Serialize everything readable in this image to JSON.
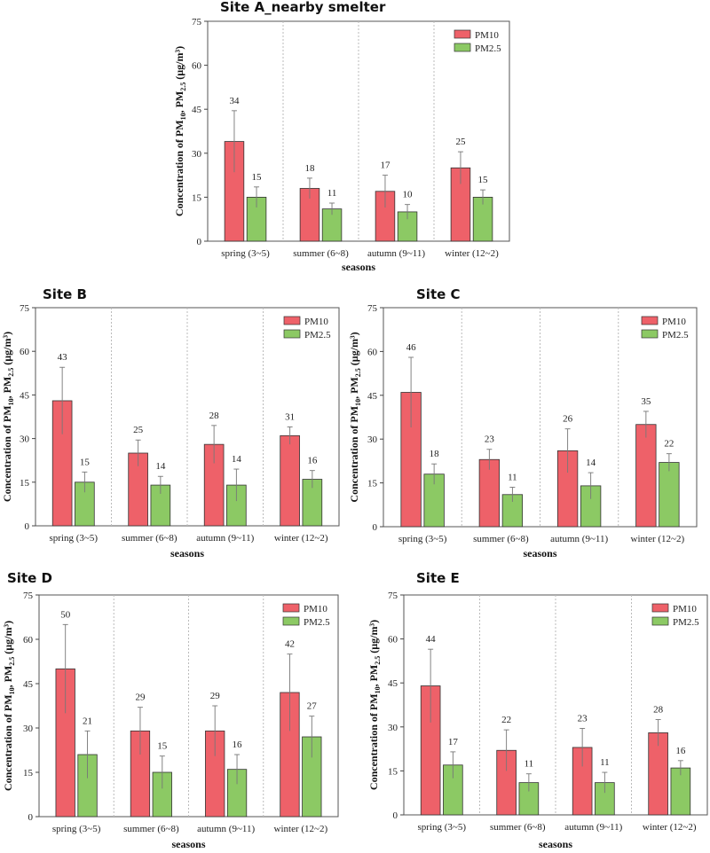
{
  "chart_data": [
    {
      "type": "bar",
      "title": "Site A_nearby smelter",
      "categories": [
        "spring (3~5)",
        "summer (6~8)",
        "autumn (9~11)",
        "winter (12~2)"
      ],
      "series": [
        {
          "name": "PM10",
          "color": "#ee6169",
          "values": [
            34,
            18,
            17,
            25
          ],
          "labels": [
            "34",
            "18",
            "17",
            "25"
          ],
          "err": [
            10.5,
            3.5,
            5.5,
            5.5
          ]
        },
        {
          "name": "PM2.5",
          "color": "#8cc964",
          "values": [
            15,
            11,
            10,
            15
          ],
          "labels": [
            "15",
            "11",
            "10",
            "15"
          ],
          "err": [
            3.5,
            2.0,
            2.5,
            2.5
          ]
        }
      ],
      "xlabel": "seasons",
      "ylabel": {
        "prefix": "Concentration of PM",
        "s1": "10",
        "mid": ", PM",
        "s2": "2.5",
        "suffix": " (µg/m³)"
      },
      "ylim": [
        0,
        75
      ],
      "yticks": [
        "0",
        "15",
        "30",
        "45",
        "60",
        "75"
      ],
      "legend": "top-right"
    },
    {
      "type": "bar",
      "title": "Site B",
      "categories": [
        "spring (3~5)",
        "summer (6~8)",
        "autumn (9~11)",
        "winter (12~2)"
      ],
      "series": [
        {
          "name": "PM10",
          "color": "#ee6169",
          "values": [
            43,
            25,
            28,
            31
          ],
          "labels": [
            "43",
            "25",
            "28",
            "31"
          ],
          "err": [
            11.5,
            4.5,
            6.5,
            3.0
          ]
        },
        {
          "name": "PM2.5",
          "color": "#8cc964",
          "values": [
            15,
            14,
            14,
            16
          ],
          "labels": [
            "15",
            "14",
            "14",
            "16"
          ],
          "err": [
            3.5,
            3.0,
            5.5,
            3.0
          ]
        }
      ],
      "xlabel": "seasons",
      "ylabel": {
        "prefix": "Concentration of PM",
        "s1": "10",
        "mid": ", PM",
        "s2": "2.5",
        "suffix": " (µg/m³)"
      },
      "ylim": [
        0,
        75
      ],
      "yticks": [
        "0",
        "15",
        "30",
        "45",
        "60",
        "75"
      ],
      "legend": "top-right"
    },
    {
      "type": "bar",
      "title": "Site C",
      "categories": [
        "spring (3~5)",
        "summer (6~8)",
        "autumn (9~11)",
        "winter (12~2)"
      ],
      "series": [
        {
          "name": "PM10",
          "color": "#ee6169",
          "values": [
            46,
            23,
            26,
            35
          ],
          "labels": [
            "46",
            "23",
            "26",
            "35"
          ],
          "err": [
            12.0,
            3.5,
            7.5,
            4.5
          ]
        },
        {
          "name": "PM2.5",
          "color": "#8cc964",
          "values": [
            18,
            11,
            14,
            22
          ],
          "labels": [
            "18",
            "11",
            "14",
            "22"
          ],
          "err": [
            3.5,
            2.5,
            4.5,
            3.0
          ]
        }
      ],
      "xlabel": "seasons",
      "ylabel": {
        "prefix": "Concentration of PM",
        "s1": "10",
        "mid": ", PM",
        "s2": "2.5",
        "suffix": " (µg/m³)"
      },
      "ylim": [
        0,
        75
      ],
      "yticks": [
        "0",
        "15",
        "30",
        "45",
        "60",
        "75"
      ],
      "legend": "top-right"
    },
    {
      "type": "bar",
      "title": "Site D",
      "categories": [
        "spring (3~5)",
        "summer (6~8)",
        "autumn (9~11)",
        "winter (12~2)"
      ],
      "series": [
        {
          "name": "PM10",
          "color": "#ee6169",
          "values": [
            50,
            29,
            29,
            42
          ],
          "labels": [
            "50",
            "29",
            "29",
            "42"
          ],
          "err": [
            15.0,
            8.0,
            8.5,
            13.0
          ]
        },
        {
          "name": "PM2.5",
          "color": "#8cc964",
          "values": [
            21,
            15,
            16,
            27
          ],
          "labels": [
            "21",
            "15",
            "16",
            "27"
          ],
          "err": [
            8.0,
            5.5,
            5.0,
            7.0
          ]
        }
      ],
      "xlabel": "seasons",
      "ylabel": {
        "prefix": "Concentration of PM",
        "s1": "10",
        "mid": ", PM",
        "s2": "2.5",
        "suffix": " (µg/m³)"
      },
      "ylim": [
        0,
        75
      ],
      "yticks": [
        "0",
        "15",
        "30",
        "45",
        "60",
        "75"
      ],
      "legend": "top-right"
    },
    {
      "type": "bar",
      "title": "Site E",
      "categories": [
        "spring (3~5)",
        "summer (6~8)",
        "autumn (9~11)",
        "winter (12~2)"
      ],
      "series": [
        {
          "name": "PM10",
          "color": "#ee6169",
          "values": [
            44,
            22,
            23,
            28
          ],
          "labels": [
            "44",
            "22",
            "23",
            "28"
          ],
          "err": [
            12.5,
            7.0,
            6.5,
            4.5
          ]
        },
        {
          "name": "PM2.5",
          "color": "#8cc964",
          "values": [
            17,
            11,
            11,
            16
          ],
          "labels": [
            "17",
            "11",
            "11",
            "16"
          ],
          "err": [
            4.5,
            3.0,
            3.5,
            2.5
          ]
        }
      ],
      "xlabel": "seasons",
      "ylabel": {
        "prefix": "Concentration of PM",
        "s1": "10",
        "mid": ", PM",
        "s2": "2.5",
        "suffix": " (µg/m³)"
      },
      "ylim": [
        0,
        75
      ],
      "yticks": [
        "0",
        "15",
        "30",
        "45",
        "60",
        "75"
      ],
      "legend": "top-right"
    }
  ]
}
